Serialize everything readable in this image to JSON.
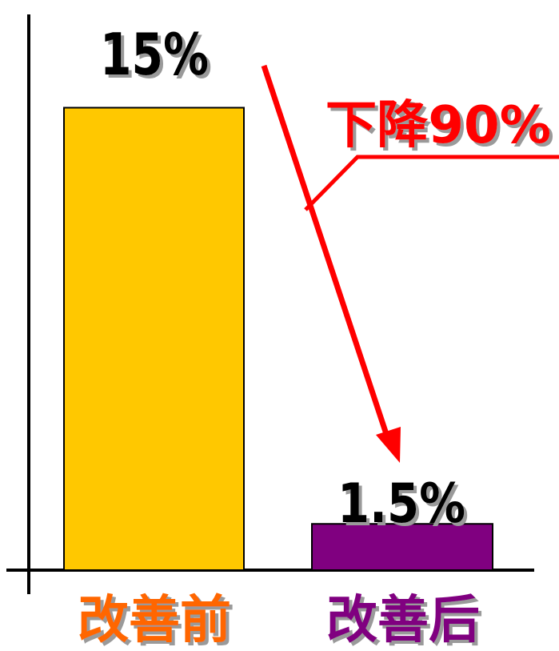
{
  "chart_data": {
    "type": "bar",
    "categories": [
      "改善前",
      "改善后"
    ],
    "values": [
      15,
      1.5
    ],
    "value_labels": [
      "15%",
      "1.5%"
    ],
    "annotation": "下降90%",
    "ylim": [
      0,
      16
    ],
    "grid": false,
    "bar_colors": [
      "#FFC800",
      "#800080"
    ],
    "category_label_colors": [
      "#FF6600",
      "#800080"
    ],
    "annotation_color": "#FF0000",
    "arrow_color": "#FF0000",
    "axis_color": "#000000"
  }
}
